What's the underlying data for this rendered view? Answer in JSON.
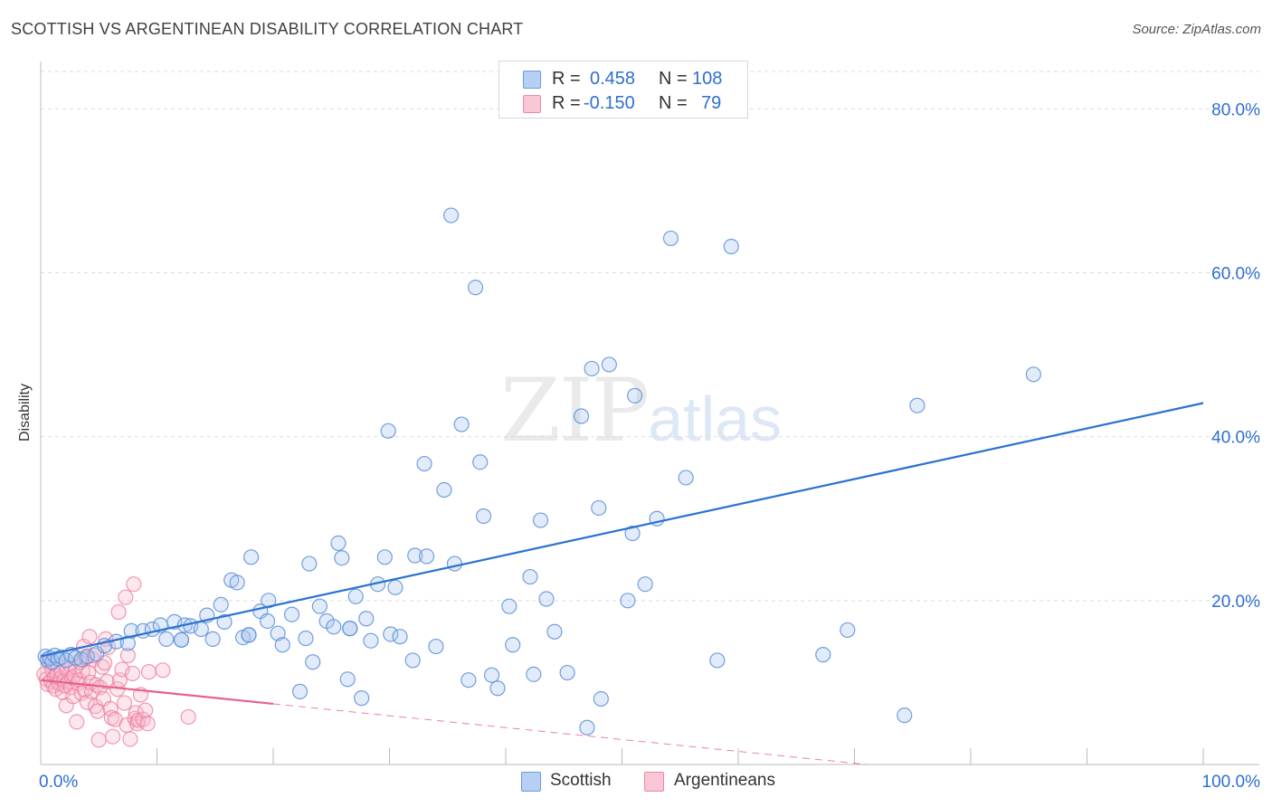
{
  "title": "SCOTTISH VS ARGENTINEAN DISABILITY CORRELATION CHART",
  "source": "Source: ZipAtlas.com",
  "watermark": {
    "zip": "ZIP",
    "atlas": "atlas"
  },
  "legend_top": [
    {
      "name": "Scottish",
      "r_label": "R =",
      "r": "0.458",
      "n_label": "N =",
      "n": "108"
    },
    {
      "name": "Argentineans",
      "r_label": "R =",
      "r": "-0.150",
      "n_label": "N =",
      "n": "79"
    }
  ],
  "colors": {
    "scottish": "#5b8fd9",
    "scottish_fill": "#a9c6ef",
    "scottish_line": "#2a72d0",
    "argentinean": "#ee7ea0",
    "argentinean_fill": "#f6b9cb",
    "argentinean_line": "#e8608a",
    "grid": "#dddddd",
    "tick_label": "#2e6fd2"
  },
  "chart_data": {
    "type": "scatter",
    "title": "SCOTTISH VS ARGENTINEAN DISABILITY CORRELATION CHART",
    "xlabel": "",
    "ylabel": "Disability",
    "xlim": [
      0,
      100
    ],
    "ylim": [
      0,
      85
    ],
    "x_tick_labels": [
      "0.0%",
      "100.0%"
    ],
    "y_ticks": [
      20,
      40,
      60,
      80
    ],
    "y_tick_labels": [
      "20.0%",
      "40.0%",
      "60.0%",
      "80.0%"
    ],
    "legend_position": "bottom",
    "series": [
      {
        "name": "Scottish",
        "trend": {
          "x": [
            0,
            100
          ],
          "y": [
            13.2,
            44.1
          ]
        },
        "points": [
          [
            0.4,
            13.2
          ],
          [
            0.6,
            12.8
          ],
          [
            0.8,
            13.0
          ],
          [
            1.0,
            12.5
          ],
          [
            1.2,
            13.3
          ],
          [
            1.5,
            12.9
          ],
          [
            1.8,
            13.1
          ],
          [
            2.2,
            12.7
          ],
          [
            2.6,
            13.4
          ],
          [
            3.0,
            13.0
          ],
          [
            3.5,
            12.8
          ],
          [
            4.0,
            13.2
          ],
          [
            4.8,
            13.5
          ],
          [
            5.5,
            14.5
          ],
          [
            6.5,
            15.0
          ],
          [
            7.5,
            14.8
          ],
          [
            7.8,
            16.3
          ],
          [
            8.8,
            16.3
          ],
          [
            9.6,
            16.5
          ],
          [
            10.3,
            17.0
          ],
          [
            10.8,
            15.3
          ],
          [
            11.5,
            17.4
          ],
          [
            12.1,
            15.2
          ],
          [
            12.4,
            17.0
          ],
          [
            12.9,
            16.9
          ],
          [
            13.8,
            16.5
          ],
          [
            14.3,
            18.2
          ],
          [
            14.8,
            15.3
          ],
          [
            15.5,
            19.5
          ],
          [
            15.8,
            17.4
          ],
          [
            16.4,
            22.5
          ],
          [
            16.9,
            22.2
          ],
          [
            17.4,
            15.5
          ],
          [
            17.9,
            15.8
          ],
          [
            18.1,
            25.3
          ],
          [
            18.9,
            18.7
          ],
          [
            19.5,
            17.5
          ],
          [
            19.6,
            20.0
          ],
          [
            20.4,
            16.0
          ],
          [
            20.8,
            14.6
          ],
          [
            21.6,
            18.3
          ],
          [
            22.3,
            8.9
          ],
          [
            22.8,
            15.4
          ],
          [
            23.1,
            24.5
          ],
          [
            23.4,
            12.5
          ],
          [
            24.0,
            19.3
          ],
          [
            24.6,
            17.5
          ],
          [
            25.2,
            16.8
          ],
          [
            25.6,
            27.0
          ],
          [
            25.9,
            25.2
          ],
          [
            26.4,
            10.4
          ],
          [
            26.6,
            16.6
          ],
          [
            27.1,
            20.5
          ],
          [
            27.6,
            8.1
          ],
          [
            28.0,
            17.8
          ],
          [
            28.4,
            15.1
          ],
          [
            29.0,
            22.0
          ],
          [
            29.6,
            25.3
          ],
          [
            29.9,
            40.7
          ],
          [
            30.1,
            15.9
          ],
          [
            30.5,
            21.6
          ],
          [
            30.9,
            15.6
          ],
          [
            32.0,
            12.7
          ],
          [
            32.2,
            25.5
          ],
          [
            33.0,
            36.7
          ],
          [
            33.2,
            25.4
          ],
          [
            34.0,
            14.4
          ],
          [
            34.7,
            33.5
          ],
          [
            35.3,
            67.0
          ],
          [
            35.6,
            24.5
          ],
          [
            36.2,
            41.5
          ],
          [
            36.8,
            10.3
          ],
          [
            37.4,
            58.2
          ],
          [
            37.8,
            36.9
          ],
          [
            38.1,
            30.3
          ],
          [
            38.8,
            10.9
          ],
          [
            39.3,
            9.3
          ],
          [
            40.3,
            19.3
          ],
          [
            40.6,
            14.6
          ],
          [
            42.1,
            22.9
          ],
          [
            42.4,
            11.0
          ],
          [
            43.0,
            29.8
          ],
          [
            43.5,
            20.2
          ],
          [
            44.2,
            16.2
          ],
          [
            45.3,
            11.2
          ],
          [
            46.5,
            42.5
          ],
          [
            47.0,
            4.5
          ],
          [
            47.4,
            48.3
          ],
          [
            48.0,
            31.3
          ],
          [
            48.2,
            8.0
          ],
          [
            48.9,
            48.8
          ],
          [
            50.5,
            20.0
          ],
          [
            50.9,
            28.2
          ],
          [
            51.1,
            45.0
          ],
          [
            52.0,
            22.0
          ],
          [
            53.0,
            30.0
          ],
          [
            54.2,
            64.2
          ],
          [
            55.5,
            35.0
          ],
          [
            58.2,
            12.7
          ],
          [
            59.4,
            63.2
          ],
          [
            67.3,
            13.4
          ],
          [
            69.4,
            16.4
          ],
          [
            74.3,
            6.0
          ],
          [
            75.4,
            43.8
          ],
          [
            85.4,
            47.6
          ],
          [
            26.6,
            16.6
          ],
          [
            17.9,
            15.8
          ],
          [
            12.1,
            15.2
          ]
        ]
      },
      {
        "name": "Argentineans",
        "trend": {
          "x": [
            0,
            20
          ],
          "y": [
            10.3,
            7.4
          ]
        },
        "trend_extension": {
          "x": [
            20,
            100
          ],
          "y": [
            7.4,
            -4.2
          ]
        },
        "points": [
          [
            0.3,
            11.0
          ],
          [
            0.5,
            10.4
          ],
          [
            0.6,
            9.8
          ],
          [
            0.7,
            12.4
          ],
          [
            0.9,
            10.2
          ],
          [
            1.0,
            11.5
          ],
          [
            1.1,
            9.6
          ],
          [
            1.2,
            10.7
          ],
          [
            1.3,
            9.2
          ],
          [
            1.4,
            10.9
          ],
          [
            1.5,
            12.0
          ],
          [
            1.6,
            9.9
          ],
          [
            1.7,
            10.5
          ],
          [
            1.8,
            11.3
          ],
          [
            1.9,
            8.8
          ],
          [
            2.0,
            10.2
          ],
          [
            2.1,
            9.6
          ],
          [
            2.2,
            7.2
          ],
          [
            2.3,
            11.6
          ],
          [
            2.4,
            10.1
          ],
          [
            2.5,
            12.2
          ],
          [
            2.6,
            9.4
          ],
          [
            2.7,
            10.6
          ],
          [
            2.8,
            8.3
          ],
          [
            2.9,
            10.8
          ],
          [
            3.0,
            11.9
          ],
          [
            3.1,
            5.2
          ],
          [
            3.2,
            9.9
          ],
          [
            3.3,
            10.3
          ],
          [
            3.4,
            12.5
          ],
          [
            3.5,
            8.7
          ],
          [
            3.6,
            11.4
          ],
          [
            3.7,
            14.4
          ],
          [
            3.8,
            9.1
          ],
          [
            3.9,
            13.0
          ],
          [
            4.0,
            7.6
          ],
          [
            4.1,
            11.2
          ],
          [
            4.2,
            15.6
          ],
          [
            4.3,
            10.0
          ],
          [
            4.4,
            8.9
          ],
          [
            4.5,
            12.8
          ],
          [
            4.6,
            13.3
          ],
          [
            4.7,
            7.1
          ],
          [
            4.8,
            9.7
          ],
          [
            4.9,
            6.5
          ],
          [
            5.0,
            3.0
          ],
          [
            5.1,
            9.4
          ],
          [
            5.3,
            11.9
          ],
          [
            5.4,
            8.0
          ],
          [
            5.5,
            12.4
          ],
          [
            5.6,
            15.3
          ],
          [
            5.7,
            10.1
          ],
          [
            5.8,
            14.3
          ],
          [
            6.0,
            6.8
          ],
          [
            6.1,
            5.7
          ],
          [
            6.2,
            3.4
          ],
          [
            6.4,
            5.5
          ],
          [
            6.6,
            9.2
          ],
          [
            6.7,
            18.6
          ],
          [
            6.8,
            10.3
          ],
          [
            7.0,
            11.6
          ],
          [
            7.2,
            7.5
          ],
          [
            7.3,
            20.4
          ],
          [
            7.4,
            4.8
          ],
          [
            7.5,
            13.3
          ],
          [
            7.7,
            3.1
          ],
          [
            7.9,
            11.1
          ],
          [
            8.0,
            22.0
          ],
          [
            8.1,
            5.6
          ],
          [
            8.2,
            6.3
          ],
          [
            8.3,
            5.0
          ],
          [
            8.4,
            5.4
          ],
          [
            8.6,
            8.5
          ],
          [
            8.8,
            5.5
          ],
          [
            9.0,
            6.6
          ],
          [
            9.2,
            5.0
          ],
          [
            9.3,
            11.3
          ],
          [
            10.5,
            11.5
          ],
          [
            12.7,
            5.8
          ]
        ]
      }
    ]
  }
}
